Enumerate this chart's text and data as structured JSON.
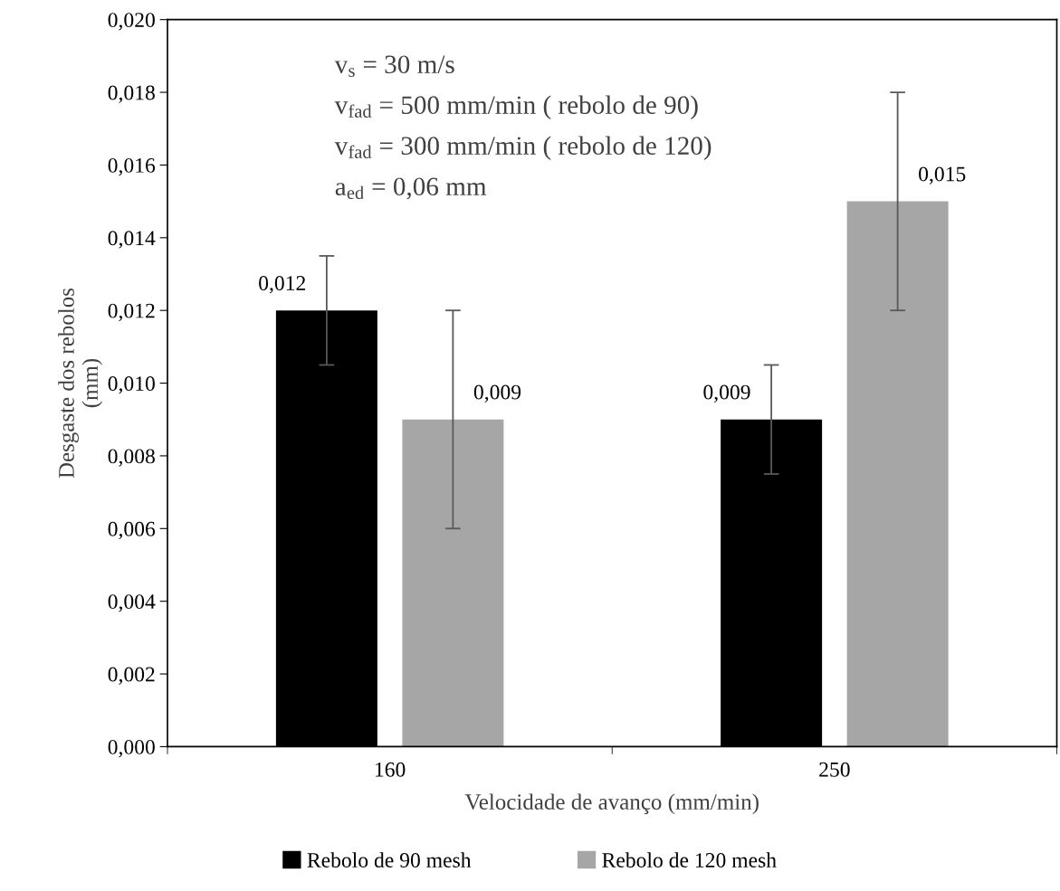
{
  "chart_data": {
    "type": "bar",
    "xlabel": "Velocidade de avanço (mm/min)",
    "ylabel": "Desgaste dos rebolos\n(mm)",
    "categories": [
      "160",
      "250"
    ],
    "series": [
      {
        "name": "Rebolo de 90 mesh",
        "color": "#000000",
        "values": [
          0.012,
          0.009
        ],
        "errors": [
          0.0015,
          0.0015
        ],
        "value_labels": [
          "0,012",
          "0,009"
        ]
      },
      {
        "name": "Rebolo de 120 mesh",
        "color": "#a6a6a6",
        "values": [
          0.009,
          0.015
        ],
        "errors": [
          0.003,
          0.003
        ],
        "value_labels": [
          "0,009",
          "0,015"
        ]
      }
    ],
    "ylim": [
      0,
      0.02
    ],
    "yticks": [
      {
        "value": 0,
        "label": "0,000"
      },
      {
        "value": 0.002,
        "label": "0,002"
      },
      {
        "value": 0.004,
        "label": "0,004"
      },
      {
        "value": 0.006,
        "label": "0,006"
      },
      {
        "value": 0.008,
        "label": "0,008"
      },
      {
        "value": 0.01,
        "label": "0,010"
      },
      {
        "value": 0.012,
        "label": "0,012"
      },
      {
        "value": 0.014,
        "label": "0,014"
      },
      {
        "value": 0.016,
        "label": "0,016"
      },
      {
        "value": 0.018,
        "label": "0,018"
      },
      {
        "value": 0.02,
        "label": "0,020"
      }
    ],
    "annotations": [
      "v$_{s}$ = 30 m/s",
      "v$_{fad}$ = 500 mm/min ( rebolo de 90)",
      "v$_{fad}$ = 300 mm/min ( rebolo de 120)",
      "a$_{ed}$ = 0,06 mm"
    ],
    "grid": false,
    "legend": "bottom"
  }
}
